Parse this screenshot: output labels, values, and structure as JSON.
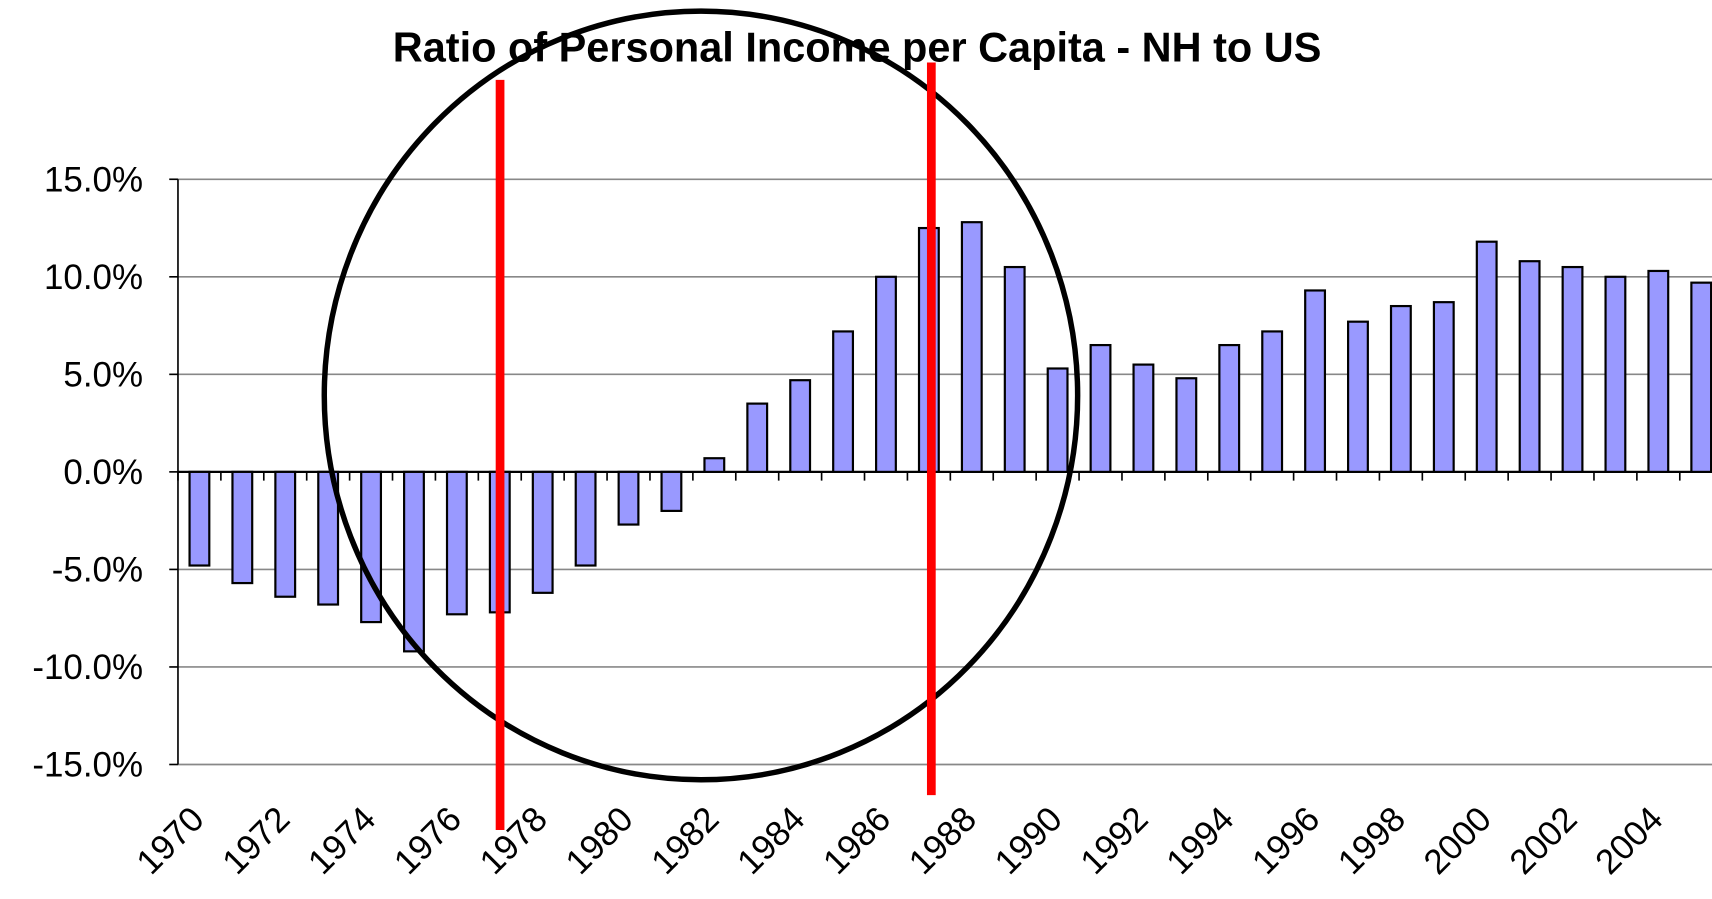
{
  "chart_data": {
    "type": "bar",
    "title": "Ratio of Personal Income per Capita - NH to US",
    "categories": [
      "1970",
      null,
      "1972",
      null,
      "1974",
      null,
      "1976",
      null,
      "1978",
      null,
      "1980",
      null,
      "1982",
      null,
      "1984",
      null,
      "1986",
      null,
      "1988",
      null,
      "1990",
      null,
      "1992",
      null,
      "1994",
      null,
      "1996",
      null,
      "1998",
      null,
      "2000",
      null,
      "2002",
      null,
      "2004",
      null
    ],
    "values": [
      -4.8,
      -5.7,
      -6.4,
      -6.8,
      -7.7,
      -9.2,
      -7.3,
      -7.2,
      -6.2,
      -4.8,
      -2.7,
      -2.0,
      0.7,
      3.5,
      4.7,
      7.2,
      10.0,
      12.5,
      12.8,
      10.5,
      5.3,
      6.5,
      5.5,
      4.8,
      6.5,
      7.2,
      9.3,
      7.7,
      8.5,
      8.7,
      11.8,
      10.8,
      10.5,
      10.0,
      10.3,
      9.7
    ],
    "color": "#9999ff",
    "ylim": [
      -15,
      15
    ],
    "yticks": [
      {
        "value": -15,
        "label": "-15.0%"
      },
      {
        "value": -10,
        "label": "-10.0%"
      },
      {
        "value": -5,
        "label": "-5.0%"
      },
      {
        "value": 0,
        "label": "0.0%"
      },
      {
        "value": 5,
        "label": "5.0%"
      },
      {
        "value": 10,
        "label": "10.0%"
      },
      {
        "value": 15,
        "label": "15.0%"
      }
    ],
    "grid": true
  }
}
